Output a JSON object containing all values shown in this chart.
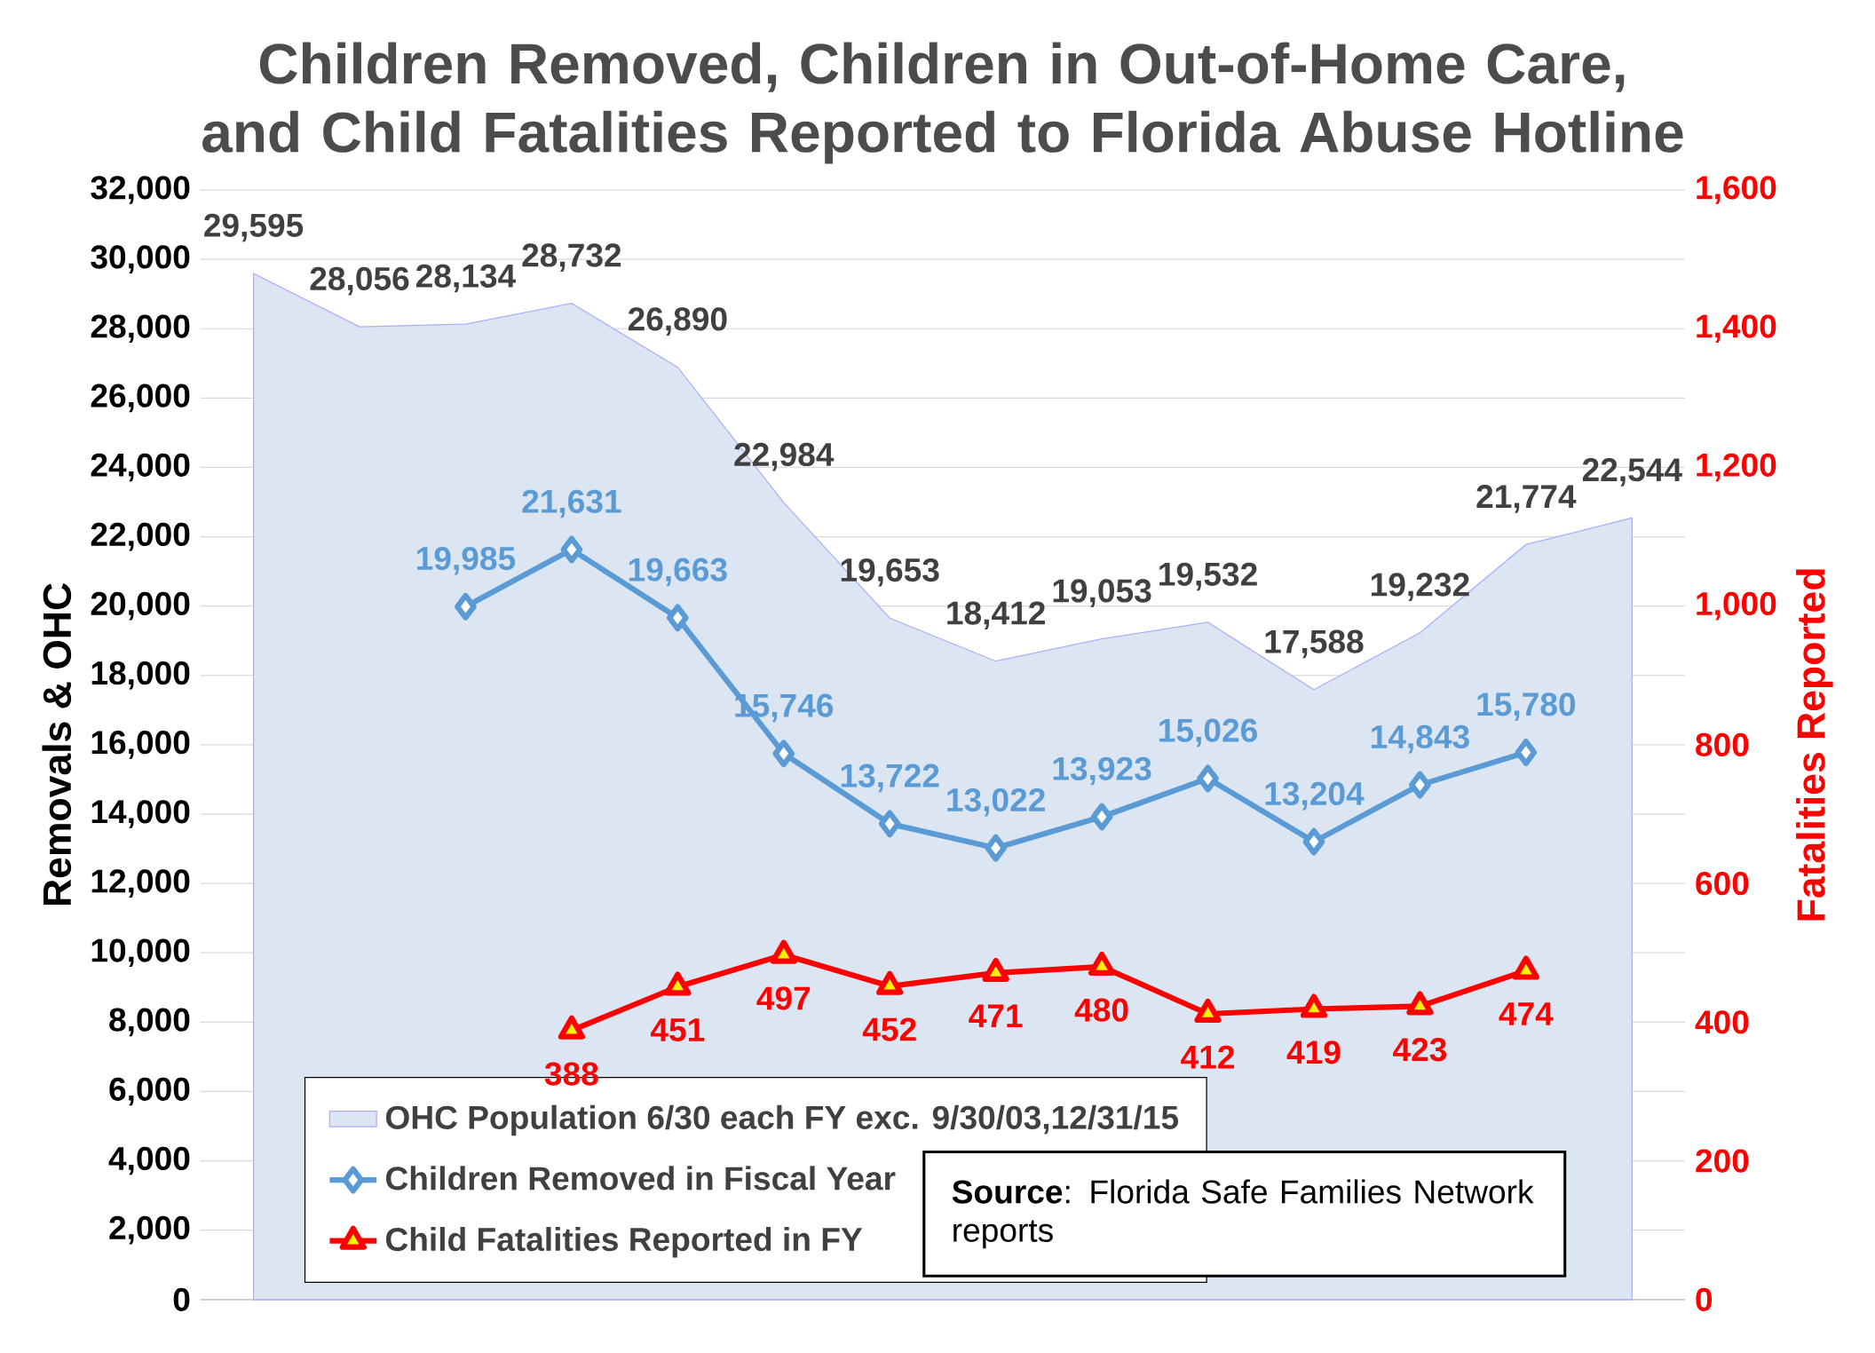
{
  "chart_data": {
    "type": "line",
    "title": "Children Removed, Children in Out-of-Home Care, and Child Fatalities Reported to Florida Abuse Hotline",
    "ylabel": "Removals & OHC",
    "y2label": "Fatalities Reported",
    "categories": [
      null,
      null,
      null,
      null,
      null,
      null,
      null,
      null,
      null,
      null,
      null,
      null,
      null,
      null
    ],
    "series": [
      {
        "name": "OHC Population 6/30 each FY exc. 9/30/03,12/31/15",
        "type": "area",
        "color": "#dce6f2",
        "marker": "none",
        "values": [
          29595,
          28056,
          28134,
          28732,
          26890,
          22984,
          19653,
          18412,
          19053,
          19532,
          17588,
          19232,
          21774,
          22544
        ],
        "value_labels": [
          "29,595",
          "28,056",
          "28,134",
          "28,732",
          "26,890",
          "22,984",
          "19,653",
          "18,412",
          "19,053",
          "19,532",
          "17,588",
          "19,232",
          "21,774",
          "22,544"
        ]
      },
      {
        "name": "Children Removed in Fiscal Year",
        "color": "#5b9bd5",
        "marker": "diamond",
        "values": [
          null,
          null,
          19985,
          21631,
          19663,
          15746,
          13722,
          13022,
          13923,
          15026,
          13204,
          14843,
          15780,
          null
        ],
        "value_labels": [
          null,
          null,
          "19,985",
          "21,631",
          "19,663",
          "15,746",
          "13,722",
          "13,022",
          "13,923",
          "15,026",
          "13,204",
          "14,843",
          "15,780",
          null
        ]
      },
      {
        "name": "Child Fatalities Reported in FY",
        "color": "#ff0000",
        "marker": "triangle",
        "axis": "y2",
        "values": [
          null,
          null,
          null,
          388,
          451,
          497,
          452,
          471,
          480,
          412,
          419,
          423,
          474,
          null
        ],
        "value_labels": [
          null,
          null,
          null,
          "388",
          "451",
          "497",
          "452",
          "471",
          "480",
          "412",
          "419",
          "423",
          "474",
          null
        ]
      }
    ],
    "ylim": [
      0,
      32000
    ],
    "yticks": [
      0,
      {
        "value": 2000,
        "label": "2,000"
      },
      {
        "value": 4000,
        "label": "4,000"
      },
      {
        "value": 6000,
        "label": "6,000"
      },
      {
        "value": 8000,
        "label": "8,000"
      },
      {
        "value": 10000,
        "label": "10,000"
      },
      {
        "value": 12000,
        "label": "12,000"
      },
      {
        "value": 14000,
        "label": "14,000"
      },
      {
        "value": 16000,
        "label": "16,000"
      },
      {
        "value": 18000,
        "label": "18,000"
      },
      {
        "value": 20000,
        "label": "20,000"
      },
      {
        "value": 22000,
        "label": "22,000"
      },
      {
        "value": 24000,
        "label": "24,000"
      },
      {
        "value": 26000,
        "label": "26,000"
      },
      {
        "value": 28000,
        "label": "28,000"
      },
      {
        "value": 30000,
        "label": "30,000"
      },
      {
        "value": 32000,
        "label": "32,000"
      }
    ],
    "y2lim": [
      0,
      1600
    ],
    "y2ticks": [
      0,
      200,
      400,
      600,
      800,
      {
        "value": 1000,
        "label": "1,000"
      },
      {
        "value": 1200,
        "label": "1,200"
      },
      {
        "value": 1400,
        "label": "1,400"
      },
      {
        "value": 1600,
        "label": "1,600"
      }
    ],
    "grid": "y",
    "legend": "bottom left",
    "annotations": [
      "**Source**: Florida Safe Families Network reports"
    ]
  }
}
